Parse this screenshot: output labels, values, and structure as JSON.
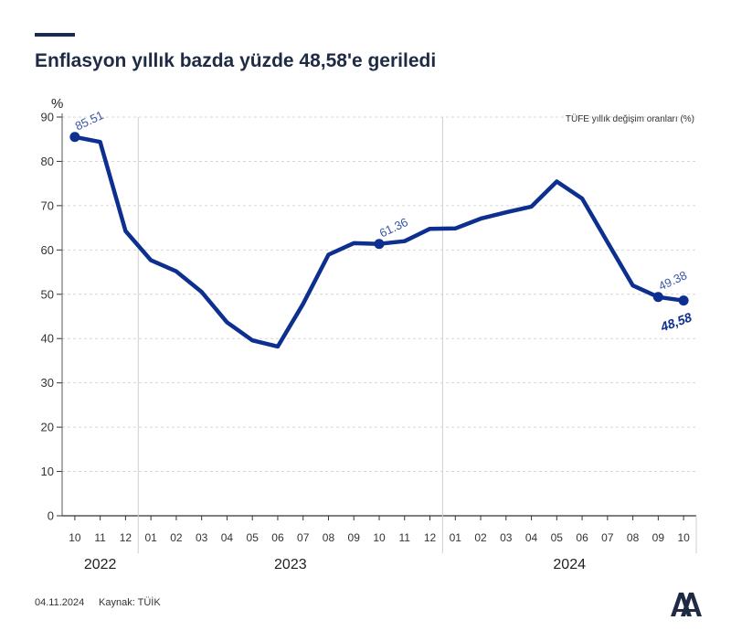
{
  "page": {
    "title": "Enflasyon yıllık bazda yüzde 48,58'e geriledi",
    "footer_date": "04.11.2024",
    "footer_source": "Kaynak: TÜİK",
    "logo_text": "AA"
  },
  "colors": {
    "series": "#0d2f8f",
    "title": "#1f2a44",
    "grid": "#d6d6d6"
  },
  "chart_data": {
    "type": "line",
    "ylabel": "%",
    "legend": "TÜFE yıllık değişim oranları (%)",
    "ylim": [
      0,
      90
    ],
    "yticks": [
      0,
      10,
      20,
      30,
      40,
      50,
      60,
      70,
      80,
      90
    ],
    "grid": true,
    "categories": [
      "10",
      "11",
      "12",
      "01",
      "02",
      "03",
      "04",
      "05",
      "06",
      "07",
      "08",
      "09",
      "10",
      "11",
      "12",
      "01",
      "02",
      "03",
      "04",
      "05",
      "06",
      "07",
      "08",
      "09",
      "10"
    ],
    "years": [
      {
        "label": "2022",
        "start": 0,
        "end": 2
      },
      {
        "label": "2023",
        "start": 3,
        "end": 14
      },
      {
        "label": "2024",
        "start": 15,
        "end": 24
      }
    ],
    "series": [
      {
        "values": [
          85.51,
          84.39,
          64.27,
          57.68,
          55.18,
          50.51,
          43.68,
          39.59,
          38.21,
          47.83,
          58.94,
          61.53,
          61.36,
          61.98,
          64.77,
          64.86,
          67.07,
          68.5,
          69.8,
          75.45,
          71.6,
          61.78,
          51.97,
          49.38,
          48.58
        ]
      }
    ],
    "annotations": [
      {
        "index": 0,
        "label": "85.51"
      },
      {
        "index": 12,
        "label": "61.36"
      },
      {
        "index": 23,
        "label": "49.38"
      },
      {
        "index": 24,
        "label": "48,58",
        "bold": true
      }
    ]
  }
}
